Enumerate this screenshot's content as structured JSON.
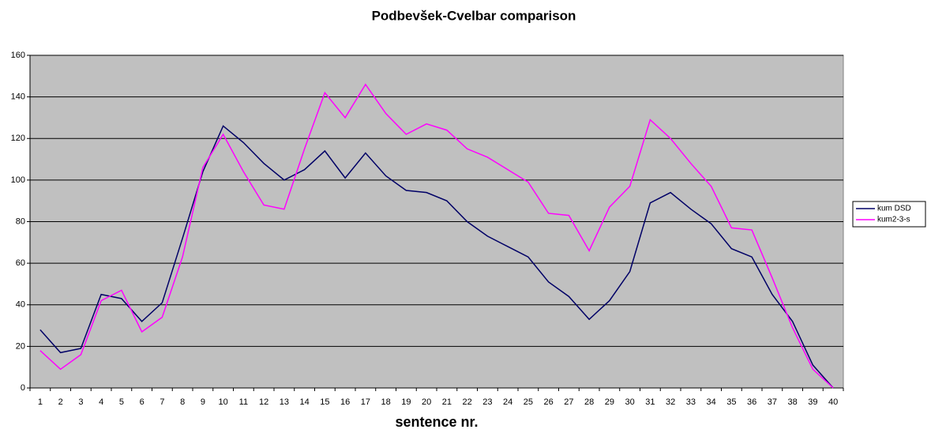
{
  "chart_data": {
    "type": "line",
    "title": "Podbevšek-Cvelbar comparison",
    "x_label": "sentence nr.",
    "categories": [
      "1",
      "2",
      "3",
      "4",
      "5",
      "6",
      "7",
      "8",
      "9",
      "10",
      "11",
      "12",
      "13",
      "14",
      "15",
      "16",
      "17",
      "18",
      "19",
      "20",
      "21",
      "22",
      "23",
      "24",
      "25",
      "26",
      "27",
      "28",
      "29",
      "30",
      "31",
      "32",
      "33",
      "34",
      "35",
      "36",
      "37",
      "38",
      "39",
      "40"
    ],
    "series": [
      {
        "name": "kum DSD",
        "color": "#000066",
        "values": [
          28,
          17,
          19,
          45,
          43,
          32,
          41,
          72,
          104,
          126,
          118,
          108,
          100,
          105,
          114,
          101,
          113,
          102,
          95,
          94,
          90,
          80,
          73,
          68,
          63,
          51,
          44,
          33,
          42,
          56,
          89,
          94,
          86,
          79,
          67,
          63,
          45,
          32,
          11,
          0
        ]
      },
      {
        "name": "kum2-3-s",
        "color": "#ff00ff",
        "values": [
          18,
          9,
          16,
          42,
          47,
          27,
          34,
          63,
          106,
          122,
          104,
          88,
          86,
          115,
          142,
          130,
          146,
          132,
          122,
          127,
          124,
          115,
          111,
          105,
          99,
          84,
          83,
          66,
          87,
          97,
          129,
          120,
          108,
          97,
          77,
          76,
          53,
          29,
          9,
          0
        ]
      }
    ],
    "ylim": [
      0,
      160
    ],
    "yticks": [
      0,
      20,
      40,
      60,
      80,
      100,
      120,
      140,
      160
    ],
    "grid": true,
    "legend": "right",
    "plot_background": "#c0c0c0"
  }
}
